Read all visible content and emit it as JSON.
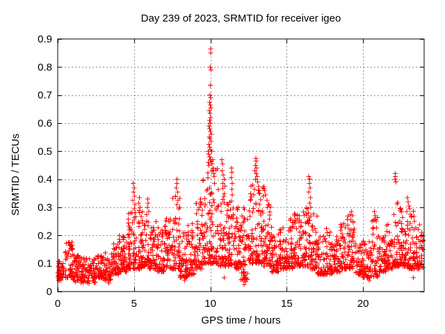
{
  "chart_data": {
    "type": "scatter",
    "title": "Day 239 of 2023, SRMTID for receiver igeo",
    "xlabel": "GPS time / hours",
    "ylabel": "SRMTID / TECUs",
    "xlim": [
      0,
      24
    ],
    "ylim": [
      0,
      0.9
    ],
    "xticks": [
      0,
      5,
      10,
      15,
      20
    ],
    "xtick_labels": [
      "0",
      "5",
      "10",
      "15",
      "20"
    ],
    "yticks": [
      0,
      0.1,
      0.2,
      0.3,
      0.4,
      0.5,
      0.6,
      0.7,
      0.8,
      0.9
    ],
    "ytick_labels": [
      "0",
      "0.1",
      "0.2",
      "0.3",
      "0.4",
      "0.5",
      "0.6",
      "0.7",
      "0.8",
      "0.9"
    ],
    "grid": {
      "visible": true,
      "style": "dashed",
      "color": "#8f8f8f"
    },
    "border_color": "#000000",
    "marker": {
      "symbol": "plus",
      "color": "#ff0000",
      "size": 7
    },
    "legend": "none",
    "peak_point": [
      10.0,
      0.86
    ],
    "seed": 239,
    "density_bins": [
      [
        0.0,
        0.5,
        46,
        0.04,
        0.11,
        1.5
      ],
      [
        0.5,
        1.0,
        50,
        0.05,
        0.18,
        1.8
      ],
      [
        1.0,
        1.5,
        48,
        0.04,
        0.13,
        1.5
      ],
      [
        1.5,
        2.0,
        48,
        0.03,
        0.12,
        1.5
      ],
      [
        2.0,
        2.5,
        44,
        0.03,
        0.12,
        1.5
      ],
      [
        2.5,
        3.0,
        46,
        0.05,
        0.13,
        1.5
      ],
      [
        3.0,
        3.5,
        46,
        0.04,
        0.14,
        1.5
      ],
      [
        3.5,
        4.0,
        50,
        0.06,
        0.17,
        1.6
      ],
      [
        4.0,
        4.5,
        54,
        0.07,
        0.2,
        1.6
      ],
      [
        4.5,
        5.0,
        54,
        0.08,
        0.29,
        2.1
      ],
      [
        5.0,
        5.5,
        54,
        0.08,
        0.3,
        2.1
      ],
      [
        5.5,
        6.0,
        54,
        0.09,
        0.29,
        2.1
      ],
      [
        6.0,
        6.5,
        50,
        0.08,
        0.25,
        2.0
      ],
      [
        6.5,
        7.0,
        50,
        0.07,
        0.23,
        2.0
      ],
      [
        7.0,
        7.5,
        50,
        0.08,
        0.27,
        2.1
      ],
      [
        7.5,
        8.0,
        54,
        0.08,
        0.34,
        2.2
      ],
      [
        8.0,
        8.5,
        50,
        0.05,
        0.22,
        2.0
      ],
      [
        8.5,
        9.0,
        50,
        0.06,
        0.25,
        2.0
      ],
      [
        9.0,
        9.5,
        54,
        0.08,
        0.32,
        2.1
      ],
      [
        9.5,
        10.0,
        58,
        0.1,
        0.44,
        2.2
      ],
      [
        10.0,
        10.5,
        58,
        0.1,
        0.44,
        2.1
      ],
      [
        10.5,
        11.0,
        54,
        0.09,
        0.4,
        2.1
      ],
      [
        11.0,
        11.5,
        54,
        0.09,
        0.34,
        2.0
      ],
      [
        11.5,
        12.0,
        54,
        0.08,
        0.3,
        2.0
      ],
      [
        12.0,
        12.5,
        54,
        0.04,
        0.3,
        2.0
      ],
      [
        12.5,
        13.0,
        54,
        0.1,
        0.4,
        2.1
      ],
      [
        13.0,
        13.5,
        54,
        0.1,
        0.38,
        2.1
      ],
      [
        13.5,
        14.0,
        54,
        0.09,
        0.33,
        2.0
      ],
      [
        14.0,
        14.5,
        50,
        0.07,
        0.22,
        1.8
      ],
      [
        14.5,
        15.0,
        50,
        0.08,
        0.23,
        1.8
      ],
      [
        15.0,
        15.5,
        50,
        0.08,
        0.26,
        2.0
      ],
      [
        15.5,
        16.0,
        50,
        0.09,
        0.28,
        2.0
      ],
      [
        16.0,
        16.5,
        52,
        0.09,
        0.3,
        2.0
      ],
      [
        16.5,
        17.0,
        52,
        0.08,
        0.28,
        2.0
      ],
      [
        17.0,
        17.5,
        46,
        0.06,
        0.2,
        1.8
      ],
      [
        17.5,
        18.0,
        46,
        0.06,
        0.22,
        1.8
      ],
      [
        18.0,
        18.5,
        46,
        0.07,
        0.2,
        1.8
      ],
      [
        18.5,
        19.0,
        48,
        0.08,
        0.26,
        2.0
      ],
      [
        19.0,
        19.5,
        50,
        0.08,
        0.28,
        2.0
      ],
      [
        19.5,
        20.0,
        46,
        0.06,
        0.17,
        1.8
      ],
      [
        20.0,
        20.5,
        46,
        0.05,
        0.18,
        1.8
      ],
      [
        20.5,
        21.0,
        46,
        0.05,
        0.27,
        2.0
      ],
      [
        21.0,
        21.5,
        46,
        0.07,
        0.2,
        1.8
      ],
      [
        21.5,
        22.0,
        50,
        0.08,
        0.24,
        2.0
      ],
      [
        22.0,
        22.5,
        52,
        0.09,
        0.32,
        2.0
      ],
      [
        22.5,
        23.0,
        56,
        0.09,
        0.32,
        2.0
      ],
      [
        23.0,
        23.5,
        50,
        0.08,
        0.3,
        2.0
      ],
      [
        23.5,
        23.95,
        40,
        0.08,
        0.25,
        1.8
      ]
    ],
    "feature_points": [
      [
        10.02,
        0.865
      ],
      [
        10.02,
        0.85
      ],
      [
        10.0,
        0.8
      ],
      [
        10.05,
        0.79
      ],
      [
        10.0,
        0.735
      ],
      [
        9.97,
        0.7
      ],
      [
        10.03,
        0.69
      ],
      [
        9.95,
        0.675
      ],
      [
        10.0,
        0.665
      ],
      [
        10.05,
        0.655
      ],
      [
        9.93,
        0.645
      ],
      [
        9.98,
        0.635
      ],
      [
        10.03,
        0.62
      ],
      [
        9.96,
        0.61
      ],
      [
        10.0,
        0.6
      ],
      [
        9.9,
        0.59
      ],
      [
        9.95,
        0.58
      ],
      [
        10.0,
        0.57
      ],
      [
        10.06,
        0.56
      ],
      [
        9.92,
        0.55
      ],
      [
        9.98,
        0.545
      ],
      [
        10.04,
        0.535
      ],
      [
        9.9,
        0.525
      ],
      [
        9.96,
        0.515
      ],
      [
        10.02,
        0.505
      ],
      [
        10.08,
        0.5
      ],
      [
        9.88,
        0.49
      ],
      [
        9.94,
        0.48
      ],
      [
        10.0,
        0.47
      ],
      [
        10.06,
        0.465
      ],
      [
        10.12,
        0.455
      ],
      [
        9.9,
        0.45
      ],
      [
        9.85,
        0.5
      ],
      [
        9.87,
        0.46
      ],
      [
        10.15,
        0.47
      ],
      [
        10.18,
        0.44
      ],
      [
        10.1,
        0.43
      ],
      [
        10.22,
        0.42
      ],
      [
        10.25,
        0.41
      ],
      [
        10.75,
        0.47
      ],
      [
        10.8,
        0.455
      ],
      [
        10.78,
        0.43
      ],
      [
        10.85,
        0.415
      ],
      [
        10.9,
        0.4
      ],
      [
        10.82,
        0.385
      ],
      [
        11.38,
        0.44
      ],
      [
        11.4,
        0.425
      ],
      [
        11.36,
        0.405
      ],
      [
        11.42,
        0.385
      ],
      [
        11.4,
        0.365
      ],
      [
        11.44,
        0.345
      ],
      [
        12.97,
        0.475
      ],
      [
        13.0,
        0.465
      ],
      [
        12.95,
        0.45
      ],
      [
        13.03,
        0.44
      ],
      [
        12.92,
        0.43
      ],
      [
        13.0,
        0.42
      ],
      [
        13.06,
        0.41
      ],
      [
        12.95,
        0.4
      ],
      [
        13.1,
        0.39
      ],
      [
        13.15,
        0.375
      ],
      [
        12.88,
        0.365
      ],
      [
        13.2,
        0.36
      ],
      [
        13.5,
        0.375
      ],
      [
        13.55,
        0.36
      ],
      [
        13.62,
        0.345
      ],
      [
        13.45,
        0.34
      ],
      [
        13.7,
        0.325
      ],
      [
        13.8,
        0.31
      ],
      [
        16.45,
        0.41
      ],
      [
        16.5,
        0.4
      ],
      [
        16.48,
        0.385
      ],
      [
        16.52,
        0.37
      ],
      [
        16.44,
        0.355
      ],
      [
        16.55,
        0.335
      ],
      [
        16.5,
        0.315
      ],
      [
        16.58,
        0.3
      ],
      [
        22.1,
        0.42
      ],
      [
        22.12,
        0.41
      ],
      [
        22.08,
        0.4
      ],
      [
        22.15,
        0.39
      ],
      [
        22.9,
        0.335
      ],
      [
        22.95,
        0.32
      ],
      [
        23.0,
        0.305
      ],
      [
        23.05,
        0.295
      ],
      [
        22.87,
        0.285
      ],
      [
        23.1,
        0.275
      ],
      [
        23.15,
        0.265
      ],
      [
        4.95,
        0.385
      ],
      [
        5.0,
        0.37
      ],
      [
        4.97,
        0.355
      ],
      [
        5.03,
        0.34
      ],
      [
        4.92,
        0.325
      ],
      [
        5.05,
        0.31
      ],
      [
        5.0,
        0.295
      ],
      [
        5.35,
        0.335
      ],
      [
        5.3,
        0.315
      ],
      [
        5.4,
        0.3
      ],
      [
        5.9,
        0.33
      ],
      [
        5.93,
        0.315
      ],
      [
        5.88,
        0.3
      ],
      [
        5.96,
        0.285
      ],
      [
        7.8,
        0.4
      ],
      [
        7.82,
        0.385
      ],
      [
        7.77,
        0.37
      ],
      [
        7.85,
        0.355
      ],
      [
        7.73,
        0.34
      ],
      [
        7.88,
        0.325
      ],
      [
        7.8,
        0.31
      ],
      [
        7.92,
        0.295
      ],
      [
        9.35,
        0.33
      ],
      [
        9.42,
        0.315
      ],
      [
        9.3,
        0.3
      ],
      [
        9.48,
        0.29
      ],
      [
        0.75,
        0.175
      ],
      [
        0.8,
        0.165
      ],
      [
        0.85,
        0.155
      ],
      [
        4.25,
        0.195
      ],
      [
        4.3,
        0.185
      ],
      [
        15.5,
        0.27
      ],
      [
        15.55,
        0.255
      ],
      [
        19.25,
        0.285
      ],
      [
        19.3,
        0.27
      ],
      [
        19.2,
        0.255
      ],
      [
        20.75,
        0.285
      ],
      [
        20.8,
        0.27
      ],
      [
        20.85,
        0.25
      ],
      [
        17.6,
        0.225
      ],
      [
        17.65,
        0.21
      ],
      [
        2.05,
        0.028
      ],
      [
        3.35,
        0.03
      ],
      [
        12.2,
        0.025
      ],
      [
        12.3,
        0.035
      ],
      [
        20.4,
        0.04
      ],
      [
        1.15,
        0.035
      ],
      [
        23.3,
        0.05
      ],
      [
        10.9,
        0.05
      ],
      [
        8.3,
        0.04
      ]
    ]
  }
}
